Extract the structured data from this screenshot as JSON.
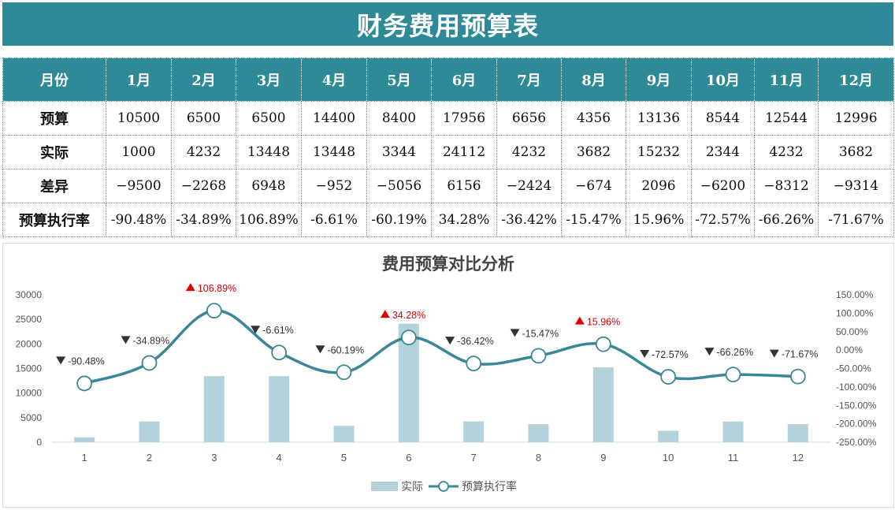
{
  "title": "财务费用预算表",
  "table": {
    "header_label": "月份",
    "months": [
      "1月",
      "2月",
      "3月",
      "4月",
      "5月",
      "6月",
      "7月",
      "8月",
      "9月",
      "10月",
      "11月",
      "12月"
    ],
    "rows": [
      {
        "label": "预算",
        "values": [
          "10500",
          "6500",
          "6500",
          "14400",
          "8400",
          "17956",
          "6656",
          "4356",
          "13136",
          "8544",
          "12544",
          "12996"
        ]
      },
      {
        "label": "实际",
        "values": [
          "1000",
          "4232",
          "13448",
          "13448",
          "3344",
          "24112",
          "4232",
          "3682",
          "15232",
          "2344",
          "4232",
          "3682"
        ]
      },
      {
        "label": "差异",
        "values": [
          "−9500",
          "−2268",
          "6948",
          "−952",
          "−5056",
          "6156",
          "−2424",
          "−674",
          "2096",
          "−6200",
          "−8312",
          "−9314"
        ]
      },
      {
        "label": "预算执行率",
        "values": [
          "-90.48%",
          "-34.89%",
          "106.89%",
          "-6.61%",
          "-60.19%",
          "34.28%",
          "-36.42%",
          "-15.47%",
          "15.96%",
          "-72.57%",
          "-66.26%",
          "-71.67%"
        ]
      }
    ]
  },
  "chart_data": {
    "type": "bar",
    "title": "费用预算对比分析",
    "categories": [
      "1",
      "2",
      "3",
      "4",
      "5",
      "6",
      "7",
      "8",
      "9",
      "10",
      "11",
      "12"
    ],
    "series": [
      {
        "name": "实际",
        "type": "bar",
        "axis": "left",
        "color": "#b3d2dc",
        "values": [
          1000,
          4232,
          13448,
          13448,
          3344,
          24112,
          4232,
          3682,
          15232,
          2344,
          4232,
          3682
        ]
      },
      {
        "name": "预算执行率",
        "type": "line",
        "axis": "right",
        "color": "#3a8797",
        "values": [
          -90.48,
          -34.89,
          106.89,
          -6.61,
          -60.19,
          34.28,
          -36.42,
          -15.47,
          15.96,
          -72.57,
          -66.26,
          -71.67
        ]
      }
    ],
    "left_axis": {
      "min": 0,
      "max": 30000,
      "step": 5000,
      "tick_labels": [
        "0",
        "5000",
        "10000",
        "15000",
        "20000",
        "25000",
        "30000"
      ]
    },
    "right_axis": {
      "min": -250,
      "max": 150,
      "step": 50,
      "tick_labels": [
        "-250.00%",
        "-200.00%",
        "-150.00%",
        "-100.00%",
        "-50.00%",
        "0.00%",
        "50.00%",
        "100.00%",
        "150.00%"
      ]
    },
    "data_labels": [
      "-90.48%",
      "-34.89%",
      "106.89%",
      "-6.61%",
      "-60.19%",
      "34.28%",
      "-36.42%",
      "-15.47%",
      "15.96%",
      "-72.57%",
      "-66.26%",
      "-71.67%"
    ],
    "up_color": "#e00000",
    "down_color": "#333333",
    "legend_position": "bottom",
    "grid": false
  }
}
